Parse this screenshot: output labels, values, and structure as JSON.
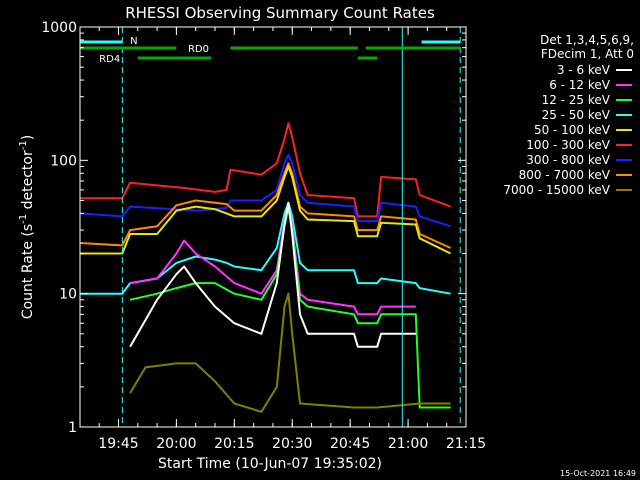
{
  "chart_data": {
    "type": "line",
    "title": "RHESSI Observing Summary Count Rates",
    "xlabel": "Start Time (10-Jun-07 19:35:02)",
    "ylabel_main": "Count Rate (s",
    "ylabel_sup1": "-1",
    "ylabel_mid": " detector",
    "ylabel_sup2": "-1",
    "ylabel_end": ")",
    "y_scale": "log",
    "ylim": [
      1,
      1000
    ],
    "xlim": [
      "19:35:02",
      "21:15"
    ],
    "x_ticks": [
      "19:45",
      "20:00",
      "20:15",
      "20:30",
      "20:45",
      "21:00",
      "21:15"
    ],
    "y_ticks": [
      "1",
      "10",
      "100",
      "1000"
    ],
    "legend_header": [
      "Det 1,3,4,5,6,9,",
      "FDecim 1, Att 0"
    ],
    "legend": [
      {
        "label": "3 - 6 keV",
        "color": "#ffffff"
      },
      {
        "label": "6 - 12 keV",
        "color": "#ff33ff"
      },
      {
        "label": "12 - 25 keV",
        "color": "#22ff22"
      },
      {
        "label": "25 - 50 keV",
        "color": "#22ffff"
      },
      {
        "label": "50 - 100 keV",
        "color": "#e6e60a"
      },
      {
        "label": "100 - 300 keV",
        "color": "#ff2020"
      },
      {
        "label": "300 - 800 keV",
        "color": "#1e1eff"
      },
      {
        "label": "800 - 7000 keV",
        "color": "#ff8c00"
      },
      {
        "label": "7000 - 15000 keV",
        "color": "#808000"
      }
    ],
    "flag_labels": {
      "night": "N",
      "rd0": "RD0",
      "rd4": "RD4"
    },
    "series": [
      {
        "label": "100 - 300 keV",
        "color": "#ff2020",
        "points": [
          [
            "19:35",
            52
          ],
          [
            "19:46",
            52
          ],
          [
            "19:48",
            68
          ],
          [
            "20:02",
            62
          ],
          [
            "20:10",
            58
          ],
          [
            "20:13",
            60
          ],
          [
            "20:14",
            85
          ],
          [
            "20:22",
            78
          ],
          [
            "20:26",
            95
          ],
          [
            "20:28",
            145
          ],
          [
            "20:29",
            190
          ],
          [
            "20:30",
            150
          ],
          [
            "20:32",
            80
          ],
          [
            "20:34",
            55
          ],
          [
            "20:46",
            52
          ],
          [
            "20:47",
            38
          ],
          [
            "20:52",
            38
          ],
          [
            "20:53",
            75
          ],
          [
            "21:02",
            72
          ],
          [
            "21:03",
            55
          ],
          [
            "21:11",
            45
          ]
        ]
      },
      {
        "label": "300 - 800 keV",
        "color": "#1e1eff",
        "points": [
          [
            "19:35",
            40
          ],
          [
            "19:46",
            38
          ],
          [
            "19:48",
            45
          ],
          [
            "20:06",
            42
          ],
          [
            "20:13",
            44
          ],
          [
            "20:14",
            50
          ],
          [
            "20:22",
            50
          ],
          [
            "20:26",
            60
          ],
          [
            "20:28",
            95
          ],
          [
            "20:29",
            110
          ],
          [
            "20:30",
            95
          ],
          [
            "20:32",
            55
          ],
          [
            "20:34",
            48
          ],
          [
            "20:46",
            45
          ],
          [
            "20:47",
            35
          ],
          [
            "20:52",
            35
          ],
          [
            "20:53",
            48
          ],
          [
            "21:02",
            45
          ],
          [
            "21:03",
            38
          ],
          [
            "21:11",
            32
          ]
        ]
      },
      {
        "label": "800 - 7000 keV",
        "color": "#ff8c00",
        "points": [
          [
            "19:35",
            24
          ],
          [
            "19:46",
            23
          ],
          [
            "19:48",
            30
          ],
          [
            "19:55",
            32
          ],
          [
            "20:00",
            46
          ],
          [
            "20:05",
            50
          ],
          [
            "20:10",
            48
          ],
          [
            "20:13",
            47
          ],
          [
            "20:15",
            42
          ],
          [
            "20:22",
            42
          ],
          [
            "20:26",
            55
          ],
          [
            "20:28",
            80
          ],
          [
            "20:29",
            95
          ],
          [
            "20:30",
            80
          ],
          [
            "20:32",
            45
          ],
          [
            "20:34",
            40
          ],
          [
            "20:46",
            38
          ],
          [
            "20:47",
            30
          ],
          [
            "20:52",
            30
          ],
          [
            "20:53",
            38
          ],
          [
            "21:02",
            36
          ],
          [
            "21:03",
            28
          ],
          [
            "21:11",
            22
          ]
        ]
      },
      {
        "label": "50 - 100 keV",
        "color": "#e6e60a",
        "points": [
          [
            "19:35",
            20
          ],
          [
            "19:46",
            20
          ],
          [
            "19:48",
            28
          ],
          [
            "19:55",
            28
          ],
          [
            "20:00",
            42
          ],
          [
            "20:05",
            45
          ],
          [
            "20:10",
            43
          ],
          [
            "20:13",
            40
          ],
          [
            "20:15",
            38
          ],
          [
            "20:22",
            38
          ],
          [
            "20:26",
            50
          ],
          [
            "20:28",
            75
          ],
          [
            "20:29",
            90
          ],
          [
            "20:30",
            75
          ],
          [
            "20:32",
            42
          ],
          [
            "20:34",
            36
          ],
          [
            "20:46",
            35
          ],
          [
            "20:47",
            27
          ],
          [
            "20:52",
            27
          ],
          [
            "20:53",
            34
          ],
          [
            "21:02",
            33
          ],
          [
            "21:03",
            26
          ],
          [
            "21:11",
            20
          ]
        ]
      },
      {
        "label": "25 - 50 keV",
        "color": "#22ffff",
        "points": [
          [
            "19:35",
            10
          ],
          [
            "19:46",
            10
          ],
          [
            "19:48",
            12
          ],
          [
            "19:55",
            13
          ],
          [
            "20:00",
            17
          ],
          [
            "20:05",
            19
          ],
          [
            "20:10",
            18
          ],
          [
            "20:13",
            17
          ],
          [
            "20:15",
            16
          ],
          [
            "20:22",
            15
          ],
          [
            "20:26",
            22
          ],
          [
            "20:28",
            40
          ],
          [
            "20:29",
            48
          ],
          [
            "20:30",
            38
          ],
          [
            "20:32",
            17
          ],
          [
            "20:34",
            15
          ],
          [
            "20:46",
            15
          ],
          [
            "20:47",
            12
          ],
          [
            "20:52",
            12
          ],
          [
            "20:53",
            13
          ],
          [
            "21:02",
            12
          ],
          [
            "21:03",
            11
          ],
          [
            "21:11",
            10
          ]
        ]
      },
      {
        "label": "6 - 12 keV",
        "color": "#ff33ff",
        "points": [
          [
            "19:48",
            12
          ],
          [
            "19:55",
            13
          ],
          [
            "20:00",
            20
          ],
          [
            "20:02",
            25
          ],
          [
            "20:05",
            20
          ],
          [
            "20:10",
            16
          ],
          [
            "20:15",
            12
          ],
          [
            "20:22",
            10
          ],
          [
            "20:26",
            15
          ],
          [
            "20:28",
            35
          ],
          [
            "20:29",
            46
          ],
          [
            "20:30",
            32
          ],
          [
            "20:32",
            10
          ],
          [
            "20:34",
            9
          ],
          [
            "20:46",
            8
          ],
          [
            "20:47",
            7
          ],
          [
            "20:52",
            7
          ],
          [
            "20:53",
            8
          ],
          [
            "21:02",
            8
          ]
        ]
      },
      {
        "label": "12 - 25 keV",
        "color": "#22ff22",
        "points": [
          [
            "19:48",
            9
          ],
          [
            "19:55",
            10
          ],
          [
            "20:00",
            11
          ],
          [
            "20:05",
            12
          ],
          [
            "20:10",
            12
          ],
          [
            "20:15",
            10
          ],
          [
            "20:22",
            9
          ],
          [
            "20:26",
            14
          ],
          [
            "20:28",
            32
          ],
          [
            "20:29",
            44
          ],
          [
            "20:30",
            30
          ],
          [
            "20:32",
            9
          ],
          [
            "20:34",
            8
          ],
          [
            "20:46",
            7
          ],
          [
            "20:47",
            6
          ],
          [
            "20:52",
            6
          ],
          [
            "20:53",
            7
          ],
          [
            "21:02",
            7
          ],
          [
            "21:03",
            1.4
          ],
          [
            "21:11",
            1.4
          ]
        ]
      },
      {
        "label": "3 - 6 keV",
        "color": "#ffffff",
        "points": [
          [
            "19:48",
            4
          ],
          [
            "19:55",
            9
          ],
          [
            "20:00",
            14
          ],
          [
            "20:02",
            16
          ],
          [
            "20:05",
            12
          ],
          [
            "20:10",
            8
          ],
          [
            "20:15",
            6
          ],
          [
            "20:22",
            5
          ],
          [
            "20:26",
            12
          ],
          [
            "20:28",
            33
          ],
          [
            "20:29",
            48
          ],
          [
            "20:30",
            28
          ],
          [
            "20:32",
            7
          ],
          [
            "20:34",
            5
          ],
          [
            "20:46",
            5
          ],
          [
            "20:47",
            4
          ],
          [
            "20:52",
            4
          ],
          [
            "20:53",
            5
          ],
          [
            "21:02",
            5
          ]
        ]
      },
      {
        "label": "7000 - 15000 keV",
        "color": "#808000",
        "points": [
          [
            "19:48",
            1.8
          ],
          [
            "19:52",
            2.8
          ],
          [
            "20:00",
            3
          ],
          [
            "20:05",
            3
          ],
          [
            "20:10",
            2.2
          ],
          [
            "20:15",
            1.5
          ],
          [
            "20:22",
            1.3
          ],
          [
            "20:26",
            2
          ],
          [
            "20:28",
            8
          ],
          [
            "20:29",
            10
          ],
          [
            "20:30",
            5
          ],
          [
            "20:32",
            1.5
          ],
          [
            "20:46",
            1.4
          ],
          [
            "20:52",
            1.4
          ],
          [
            "21:03",
            1.5
          ],
          [
            "21:11",
            1.5
          ]
        ]
      }
    ]
  },
  "footer_date": "15-Oct-2021 16:49"
}
